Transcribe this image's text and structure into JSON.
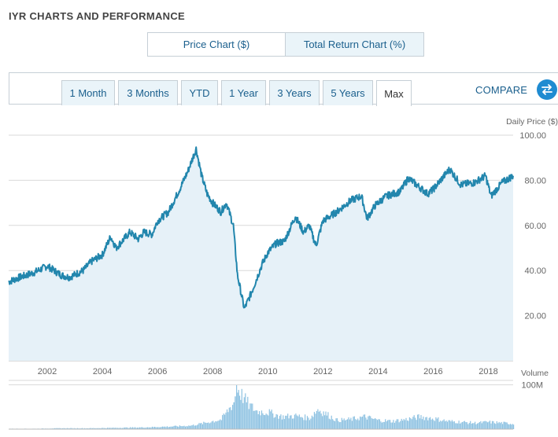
{
  "section": {
    "title": "IYR CHARTS AND PERFORMANCE"
  },
  "chart_type": {
    "price_label": "Price Chart ($)",
    "total_return_label": "Total Return Chart (%)"
  },
  "ranges": [
    {
      "label": "1 Month"
    },
    {
      "label": "3 Months"
    },
    {
      "label": "YTD"
    },
    {
      "label": "1 Year"
    },
    {
      "label": "3 Years"
    },
    {
      "label": "5 Years"
    },
    {
      "label": "Max",
      "active": true
    }
  ],
  "compare": {
    "label": "COMPARE",
    "icon": "swap-arrows-icon"
  },
  "colors": {
    "line": "#2286ad",
    "area": "#e6f1f8",
    "volume": "#8ec2e2",
    "grid": "#d9d9d9",
    "link": "#1a5f8d"
  },
  "chart_data": [
    {
      "type": "area",
      "ylabel": "Daily Price ($)",
      "ylim": [
        0,
        100
      ],
      "yticks": [
        "100.00",
        "80.00",
        "60.00",
        "40.00",
        "20.00"
      ],
      "xlim": [
        2000.6,
        2018.9
      ],
      "xticks": [
        "2002",
        "2004",
        "2006",
        "2008",
        "2010",
        "2012",
        "2014",
        "2016",
        "2018"
      ],
      "series": [
        {
          "x": [
            2000.6,
            2001.0,
            2001.5,
            2002.0,
            2002.5,
            2002.8,
            2003.3,
            2003.6,
            2004.0,
            2004.3,
            2004.5,
            2005.0,
            2005.3,
            2005.5,
            2005.8,
            2006.0,
            2006.4,
            2006.8,
            2007.1,
            2007.4,
            2007.6,
            2007.8,
            2008.0,
            2008.3,
            2008.5,
            2008.75,
            2008.9,
            2009.15,
            2009.4,
            2009.8,
            2010.0,
            2010.3,
            2010.6,
            2011.0,
            2011.3,
            2011.5,
            2011.75,
            2012.0,
            2012.5,
            2013.0,
            2013.4,
            2013.6,
            2013.9,
            2014.3,
            2014.8,
            2015.1,
            2015.5,
            2015.8,
            2016.0,
            2016.6,
            2017.0,
            2017.5,
            2017.9,
            2018.1,
            2018.5,
            2018.9
          ],
          "y": [
            35,
            37,
            39,
            42,
            38,
            37,
            40,
            44,
            47,
            55,
            50,
            57,
            54,
            57,
            56,
            62,
            66,
            76,
            84,
            94,
            82,
            74,
            70,
            66,
            70,
            60,
            38,
            23,
            30,
            43,
            48,
            52,
            53,
            64,
            57,
            60,
            51,
            62,
            66,
            71,
            73,
            63,
            69,
            73,
            75,
            81,
            77,
            74,
            76,
            85,
            78,
            79,
            82,
            73,
            79,
            82
          ]
        }
      ]
    },
    {
      "type": "bar",
      "ylabel": "Volume",
      "yticks": [
        "100M"
      ],
      "ylim": [
        0,
        110
      ],
      "x": [
        2000.6,
        2001.5,
        2002.5,
        2003.5,
        2004.5,
        2005.5,
        2006.5,
        2007.2,
        2007.7,
        2008.3,
        2008.75,
        2008.85,
        2009.0,
        2009.3,
        2009.6,
        2010.0,
        2010.5,
        2011.0,
        2011.5,
        2011.8,
        2012.5,
        2013.0,
        2013.5,
        2014.0,
        2014.5,
        2015.0,
        2015.5,
        2016.0,
        2016.5,
        2017.0,
        2017.5,
        2018.0,
        2018.5,
        2018.9
      ],
      "values": [
        1,
        1,
        2,
        2,
        3,
        4,
        6,
        8,
        14,
        22,
        60,
        98,
        80,
        55,
        40,
        38,
        28,
        30,
        25,
        45,
        20,
        22,
        28,
        20,
        18,
        22,
        28,
        24,
        18,
        16,
        14,
        16,
        14,
        12
      ]
    }
  ]
}
